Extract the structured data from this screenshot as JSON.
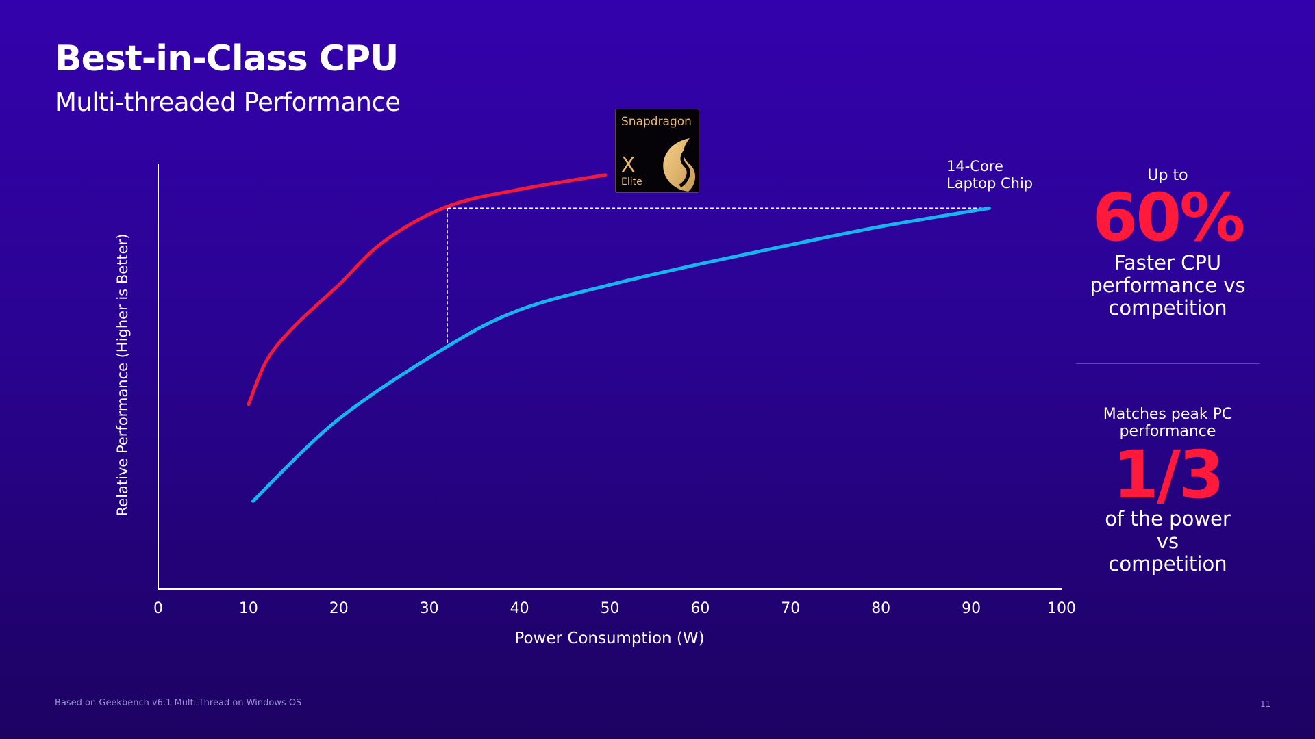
{
  "title": "Best-in-Class CPU",
  "subtitle": "Multi-threaded Performance",
  "logo": {
    "brand": "Snapdragon",
    "model": "X",
    "tier": "Elite"
  },
  "chart_data": {
    "type": "line",
    "xlabel": "Power Consumption (W)",
    "ylabel": "Relative Performance  (Higher is Better)",
    "xlim": [
      0,
      100
    ],
    "ylim": [
      0,
      100
    ],
    "xticks": [
      0,
      10,
      20,
      30,
      40,
      50,
      60,
      70,
      80,
      90,
      100
    ],
    "grid": false,
    "series": [
      {
        "name": "Snapdragon X Elite",
        "color": "#ee1c3a",
        "x": [
          10,
          12,
          15,
          20,
          25,
          32,
          40,
          49.5
        ],
        "y": [
          43.4,
          53.7,
          61.6,
          71.5,
          81.7,
          89.9,
          93.9,
          97.3
        ]
      },
      {
        "name": "14-Core Laptop Chip",
        "color": "#19b3ee",
        "x": [
          10.5,
          20,
          32,
          40,
          50,
          60,
          70,
          80,
          92
        ],
        "y": [
          20.7,
          40,
          57,
          65.6,
          71.5,
          76.4,
          80.9,
          85.2,
          89.5
        ]
      }
    ],
    "annotations": {
      "series_label": "14-Core\nLaptop Chip",
      "match_x": 32,
      "match_y": 89.5
    }
  },
  "side": {
    "top_pre": "Up to",
    "top_value": "60%",
    "top_desc": "Faster CPU performance vs competition",
    "bottom_pre": "Matches peak PC performance",
    "bottom_value": "1/3",
    "bottom_desc": "of the power vs competition"
  },
  "footnote": "Based on Geekbench v6.1 Multi-Thread on Windows OS",
  "page_number": "11"
}
